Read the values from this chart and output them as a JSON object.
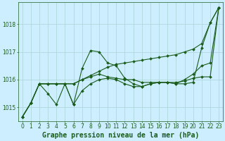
{
  "title": "Graphe pression niveau de la mer (hPa)",
  "background_color": "#cceeff",
  "grid_color": "#aad4d4",
  "line_color": "#1a5c1a",
  "xlim": [
    -0.5,
    23.5
  ],
  "ylim": [
    1014.5,
    1018.8
  ],
  "yticks": [
    1015,
    1016,
    1017,
    1018
  ],
  "xticks": [
    0,
    1,
    2,
    3,
    4,
    5,
    6,
    7,
    8,
    9,
    10,
    11,
    12,
    13,
    14,
    15,
    16,
    17,
    18,
    19,
    20,
    21,
    22,
    23
  ],
  "series": [
    [
      1014.65,
      1015.15,
      1015.85,
      1015.85,
      1015.85,
      1015.85,
      1015.85,
      1016.0,
      1016.15,
      1016.3,
      1016.45,
      1016.55,
      1016.6,
      1016.65,
      1016.7,
      1016.75,
      1016.8,
      1016.85,
      1016.9,
      1017.0,
      1017.1,
      1017.3,
      1018.05,
      1018.6
    ],
    [
      1014.65,
      1015.15,
      1015.85,
      1015.5,
      1015.1,
      1015.85,
      1015.1,
      1016.4,
      1017.05,
      1017.0,
      1016.6,
      1016.5,
      1016.05,
      1015.85,
      1015.75,
      1015.85,
      1015.9,
      1015.9,
      1015.85,
      1015.85,
      1015.9,
      1017.15,
      1018.05,
      1018.6
    ],
    [
      1014.65,
      1015.15,
      1015.85,
      1015.85,
      1015.85,
      1015.85,
      1015.1,
      1015.6,
      1015.85,
      1016.0,
      1016.05,
      1016.0,
      1015.85,
      1015.75,
      1015.75,
      1015.85,
      1015.9,
      1015.9,
      1015.85,
      1016.0,
      1016.2,
      1016.5,
      1016.6,
      1018.6
    ],
    [
      1014.65,
      1015.15,
      1015.85,
      1015.85,
      1015.85,
      1015.85,
      1015.85,
      1016.0,
      1016.1,
      1016.2,
      1016.1,
      1016.05,
      1016.0,
      1016.0,
      1015.9,
      1015.9,
      1015.9,
      1015.9,
      1015.9,
      1015.95,
      1016.05,
      1016.1,
      1016.1,
      1018.6
    ]
  ],
  "marker": "D",
  "markersize": 2.0,
  "linewidth": 0.8,
  "title_fontsize": 7,
  "tick_fontsize": 5.5
}
